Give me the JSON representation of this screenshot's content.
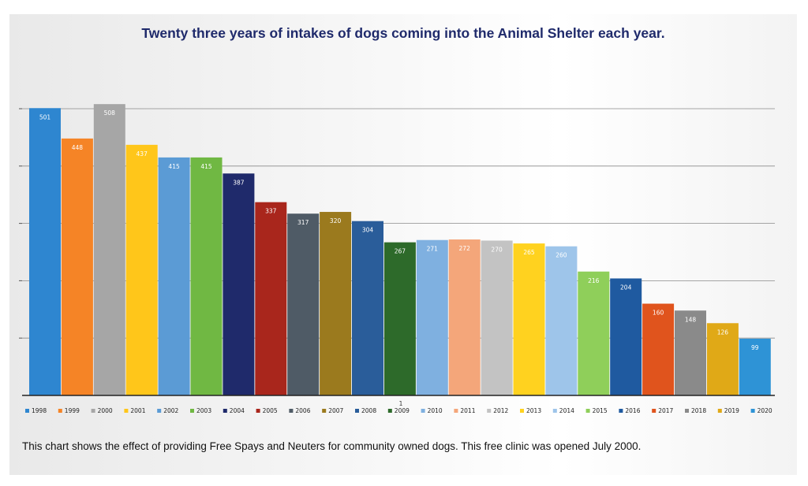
{
  "chart_data": {
    "type": "bar",
    "title": "Twenty three years of intakes of dogs coming into the Animal Shelter each year.",
    "categories": [
      "1998",
      "1999",
      "2000",
      "2001",
      "2002",
      "2003",
      "2004",
      "2005",
      "2006",
      "2007",
      "2008",
      "2009",
      "2010",
      "2011",
      "2012",
      "2013",
      "2014",
      "2015",
      "2016",
      "2017",
      "2018",
      "2019",
      "2020"
    ],
    "values": [
      501,
      448,
      508,
      437,
      415,
      415,
      387,
      337,
      317,
      320,
      304,
      267,
      271,
      272,
      270,
      265,
      260,
      216,
      204,
      160,
      148,
      126,
      99
    ],
    "colors": [
      "#2e86d0",
      "#f58426",
      "#a6a6a6",
      "#ffc61a",
      "#5b9bd5",
      "#70b843",
      "#1f2a6b",
      "#a9261c",
      "#4f5b66",
      "#9b7a1e",
      "#2a5d9a",
      "#2d6a2a",
      "#7fb0e0",
      "#f4a67a",
      "#c3c3c3",
      "#ffd21f",
      "#9ec5ea",
      "#8fcf5a",
      "#1f5aa0",
      "#e0541d",
      "#8a8a8a",
      "#e0a917",
      "#2e93d6"
    ],
    "ylim": [
      0,
      500
    ],
    "grid": true,
    "legend_position": "bottom",
    "page_marker": "1"
  },
  "caption": "This chart shows the effect of providing Free Spays and Neuters for community owned dogs.  This free clinic was opened July 2000."
}
